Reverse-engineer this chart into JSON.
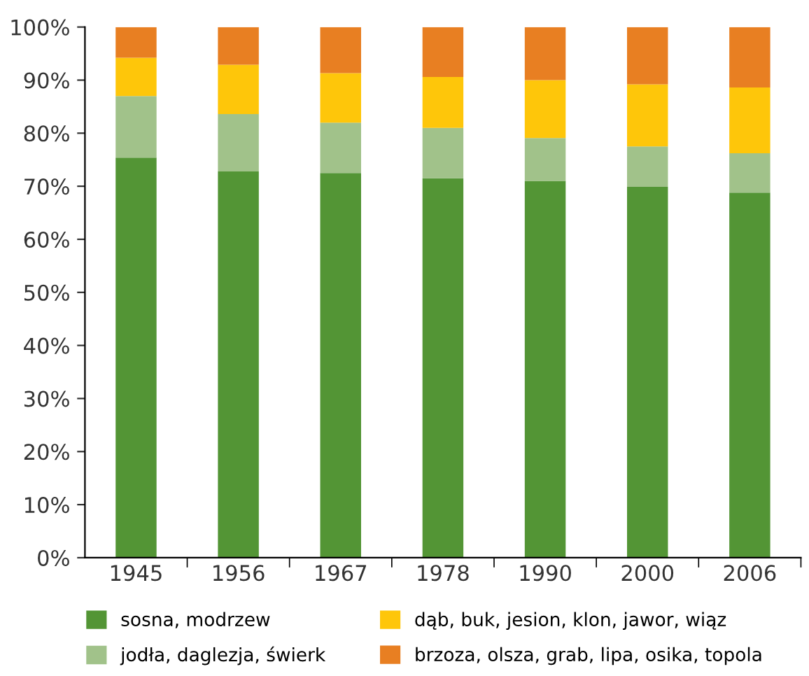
{
  "chart_data": {
    "type": "bar",
    "stacked": true,
    "categories": [
      "1945",
      "1956",
      "1967",
      "1978",
      "1990",
      "2000",
      "2006"
    ],
    "series": [
      {
        "name": "sosna, modrzew",
        "color": "#539535",
        "values": [
          75.4,
          72.8,
          72.5,
          71.5,
          71.0,
          69.9,
          68.8
        ]
      },
      {
        "name": "jodła, daglezja, świerk",
        "color": "#a1c28a",
        "values": [
          11.6,
          10.8,
          9.5,
          9.5,
          8.1,
          7.6,
          7.4
        ]
      },
      {
        "name": "dąb, buk, jesion, klon, jawor, wiąz",
        "color": "#fec60a",
        "values": [
          7.2,
          9.3,
          9.3,
          9.6,
          10.9,
          11.7,
          12.4
        ]
      },
      {
        "name": "brzoza, olsza, grab, lipa, osika, topola",
        "color": "#e87f22",
        "values": [
          5.8,
          7.1,
          8.7,
          9.4,
          10.0,
          10.8,
          11.4
        ]
      }
    ],
    "ylim": [
      0,
      100
    ],
    "yticks": [
      {
        "value": 0,
        "label": "0%"
      },
      {
        "value": 10,
        "label": "10%"
      },
      {
        "value": 20,
        "label": "20%"
      },
      {
        "value": 30,
        "label": "30%"
      },
      {
        "value": 40,
        "label": "40%"
      },
      {
        "value": 50,
        "label": "50%"
      },
      {
        "value": 60,
        "label": "60%"
      },
      {
        "value": 70,
        "label": "70%"
      },
      {
        "value": 80,
        "label": "80%"
      },
      {
        "value": 90,
        "label": "90%"
      },
      {
        "value": 100,
        "label": "100%"
      }
    ],
    "grid": false,
    "legend": "bottom"
  }
}
